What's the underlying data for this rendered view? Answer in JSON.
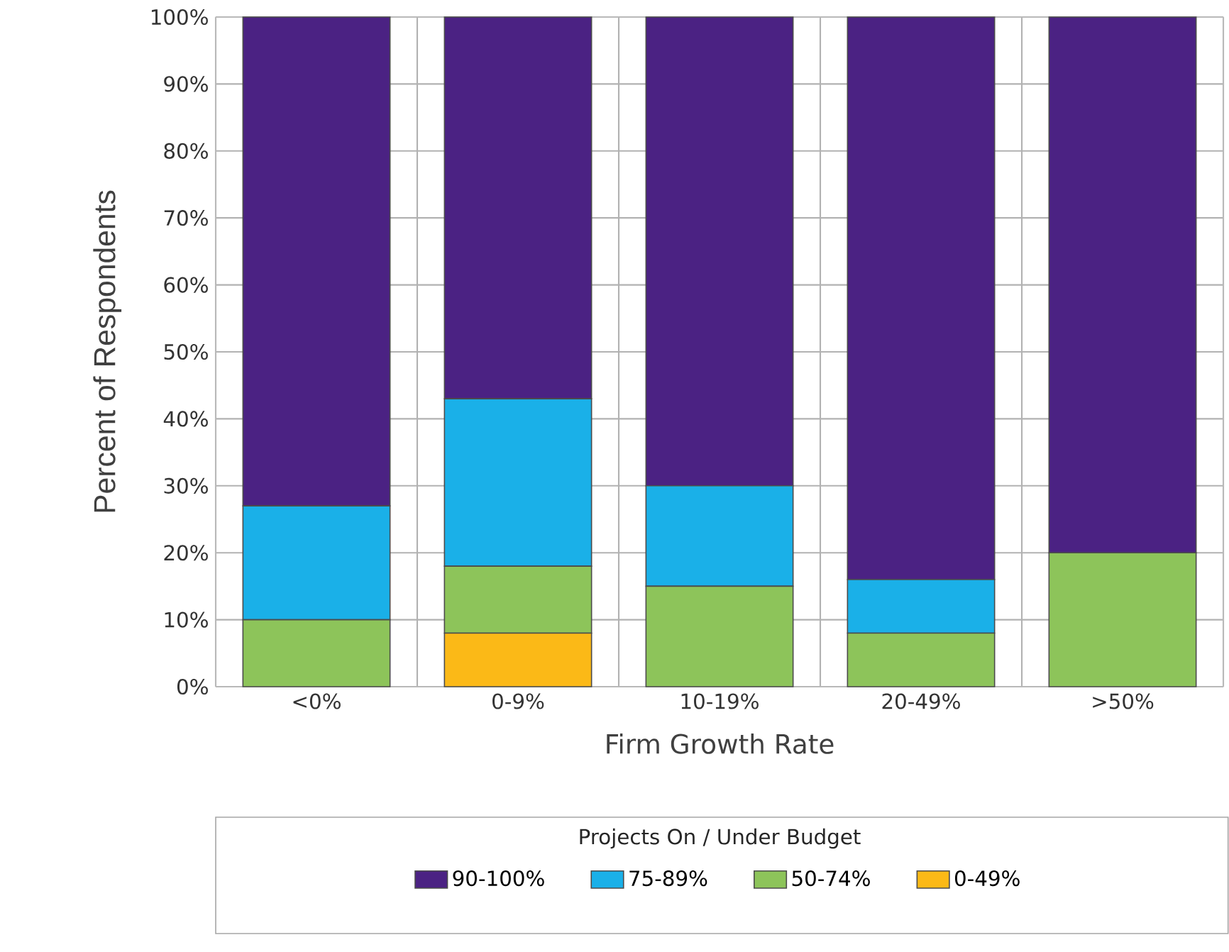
{
  "chart_data": {
    "type": "bar",
    "stacked": true,
    "xlabel": "Firm Growth Rate",
    "ylabel": "Percent of Respondents",
    "legend_title": "Projects On / Under Budget",
    "categories": [
      "<0%",
      "0-9%",
      "10-19%",
      "20-49%",
      ">50%"
    ],
    "series": [
      {
        "name": "0-49%",
        "color": "#fbb917",
        "values": [
          0,
          8,
          0,
          0,
          0
        ]
      },
      {
        "name": "50-74%",
        "color": "#8dc45a",
        "values": [
          10,
          10,
          15,
          8,
          20
        ]
      },
      {
        "name": "75-89%",
        "color": "#1ab0e8",
        "values": [
          17,
          25,
          15,
          8,
          0
        ]
      },
      {
        "name": "90-100%",
        "color": "#4b2283",
        "values": [
          73,
          57,
          70,
          84,
          80
        ]
      }
    ],
    "ylim": [
      0,
      100
    ],
    "yticks": [
      {
        "value": 0,
        "label": "0%"
      },
      {
        "value": 10,
        "label": "10%"
      },
      {
        "value": 20,
        "label": "20%"
      },
      {
        "value": 30,
        "label": "30%"
      },
      {
        "value": 40,
        "label": "40%"
      },
      {
        "value": 50,
        "label": "50%"
      },
      {
        "value": 60,
        "label": "60%"
      },
      {
        "value": 70,
        "label": "70%"
      },
      {
        "value": 80,
        "label": "80%"
      },
      {
        "value": 90,
        "label": "90%"
      },
      {
        "value": 100,
        "label": "100%"
      }
    ],
    "grid": true,
    "legend": "bottom"
  }
}
